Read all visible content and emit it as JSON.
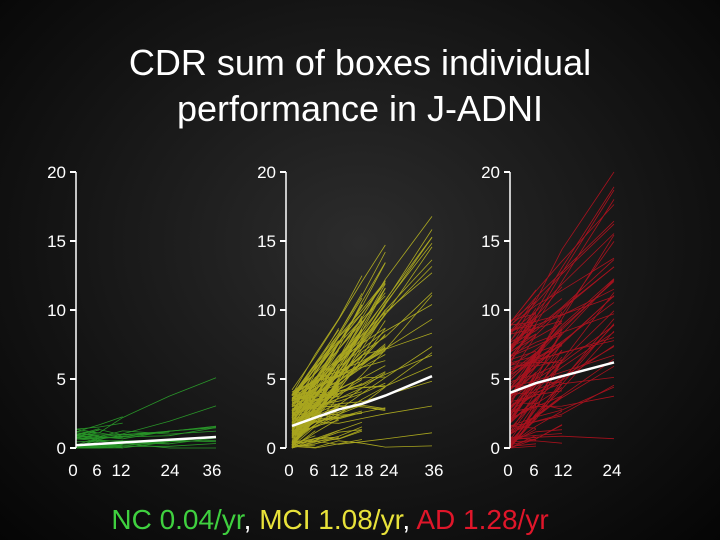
{
  "title_lines": [
    "CDR sum of boxes individual",
    "performance in J-ADNI"
  ],
  "rates": {
    "nc": "NC 0.04/yr",
    "sep1": ", ",
    "mci": "MCI 1.08/yr",
    "sep2": ", ",
    "ad": "AD 1.28/yr"
  },
  "colors": {
    "nc": "#2fbf2f",
    "mci": "#d8d420",
    "ad": "#d81020",
    "mean_line": "#ffffff",
    "axis": "#ffffff"
  },
  "chart_data": [
    {
      "type": "line",
      "group": "NC",
      "ylim": [
        0,
        20
      ],
      "xlim": [
        0,
        36
      ],
      "yticks": [
        "0",
        "5",
        "10",
        "15",
        "20"
      ],
      "xticks": [
        "0",
        "6",
        "12",
        "24",
        "36"
      ],
      "mean_x": [
        0,
        6,
        12,
        24,
        36
      ],
      "mean_y": [
        0.2,
        0.3,
        0.4,
        0.6,
        0.8
      ],
      "individual_lines": "many faint individual trajectories"
    },
    {
      "type": "line",
      "group": "MCI",
      "ylim": [
        0,
        20
      ],
      "xlim": [
        0,
        36
      ],
      "yticks": [
        "0",
        "5",
        "10",
        "15",
        "20"
      ],
      "xticks": [
        "0",
        "6",
        "12",
        "18",
        "24",
        "36"
      ],
      "mean_x": [
        0,
        6,
        12,
        18,
        24,
        36
      ],
      "mean_y": [
        1.6,
        2.2,
        2.8,
        3.2,
        3.8,
        5.2
      ],
      "individual_lines": "many faint individual trajectories"
    },
    {
      "type": "line",
      "group": "AD",
      "ylim": [
        0,
        20
      ],
      "xlim": [
        0,
        24
      ],
      "yticks": [
        "0",
        "5",
        "10",
        "15",
        "20"
      ],
      "xticks": [
        "0",
        "6",
        "12",
        "24"
      ],
      "mean_x": [
        0,
        6,
        12,
        24
      ],
      "mean_y": [
        4.0,
        4.7,
        5.2,
        6.2
      ],
      "individual_lines": "many faint individual trajectories"
    }
  ]
}
